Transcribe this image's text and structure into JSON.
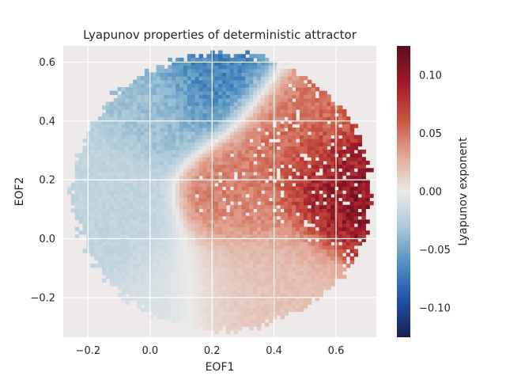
{
  "chart_data": {
    "type": "heatmap",
    "title": "Lyapunov properties of deterministic attractor",
    "xlabel": "EOF1",
    "ylabel": "EOF2",
    "colorbar_label": "Lyapunov exponent",
    "xlim": [
      -0.28,
      0.73
    ],
    "ylim": [
      -0.335,
      0.655
    ],
    "color_range": [
      -0.125,
      0.125
    ],
    "colormap": [
      "#1c1f4a",
      "#1f4fa8",
      "#4f8fc0",
      "#a9c8d8",
      "#eaeaea",
      "#e1a693",
      "#c9523f",
      "#9e1a2a",
      "#5a0f1d"
    ],
    "axes_background": "#eeeaea",
    "grid": true,
    "x_ticks": [
      {
        "value": -0.2,
        "label": "−0.2"
      },
      {
        "value": 0.0,
        "label": "0.0"
      },
      {
        "value": 0.2,
        "label": "0.2"
      },
      {
        "value": 0.4,
        "label": "0.4"
      },
      {
        "value": 0.6,
        "label": "0.6"
      }
    ],
    "y_ticks": [
      {
        "value": -0.2,
        "label": "−0.2"
      },
      {
        "value": 0.0,
        "label": "0.0"
      },
      {
        "value": 0.2,
        "label": "0.2"
      },
      {
        "value": 0.4,
        "label": "0.4"
      },
      {
        "value": 0.6,
        "label": "0.6"
      }
    ],
    "colorbar_ticks": [
      {
        "value": 0.1,
        "label": "0.10"
      },
      {
        "value": 0.05,
        "label": "0.05"
      },
      {
        "value": 0.0,
        "label": "0.00"
      },
      {
        "value": -0.05,
        "label": "−0.05"
      },
      {
        "value": -0.1,
        "label": "−0.10"
      }
    ],
    "attractor_region": {
      "center": [
        0.23,
        0.16
      ],
      "radius_x": 0.48,
      "radius_y": 0.47
    },
    "features": [
      {
        "region": "top arc",
        "center": [
          0.2,
          0.58
        ],
        "value": -0.07
      },
      {
        "region": "upper-left lobe",
        "center": [
          0.0,
          0.48
        ],
        "value": -0.035
      },
      {
        "region": "left edge",
        "center": [
          -0.2,
          0.2
        ],
        "value": -0.02
      },
      {
        "region": "lower-left",
        "center": [
          -0.15,
          0.0
        ],
        "value": -0.02
      },
      {
        "region": "central core",
        "center": [
          0.35,
          0.15
        ],
        "value": 0.045
      },
      {
        "region": "upper-right lobe",
        "center": [
          0.48,
          0.38
        ],
        "value": 0.05
      },
      {
        "region": "right hot spot",
        "center": [
          0.6,
          0.18
        ],
        "value": 0.1
      },
      {
        "region": "lower-right",
        "center": [
          0.4,
          -0.1
        ],
        "value": 0.02
      },
      {
        "region": "lower-middle",
        "center": [
          0.25,
          -0.22
        ],
        "value": 0.015
      },
      {
        "region": "bottom-left tail",
        "center": [
          0.05,
          -0.22
        ],
        "value": -0.01
      }
    ]
  }
}
